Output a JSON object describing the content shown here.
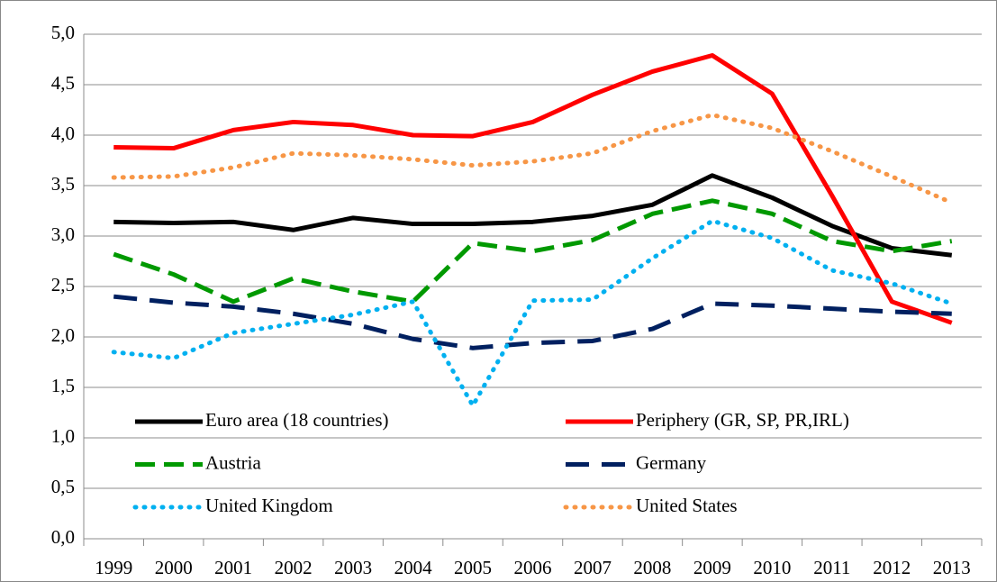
{
  "chart_data": {
    "type": "line",
    "categories": [
      "1999",
      "2000",
      "2001",
      "2002",
      "2003",
      "2004",
      "2005",
      "2006",
      "2007",
      "2008",
      "2009",
      "2010",
      "2011",
      "2012",
      "2013"
    ],
    "series": [
      {
        "name": "Euro area (18 countries)",
        "color": "#000000",
        "dash": "solid",
        "values": [
          3.14,
          3.13,
          3.14,
          3.06,
          3.18,
          3.12,
          3.12,
          3.14,
          3.2,
          3.31,
          3.6,
          3.38,
          3.1,
          2.88,
          2.81
        ]
      },
      {
        "name": "Periphery (GR, SP, PR,IRL)",
        "color": "#ff0000",
        "dash": "solid",
        "values": [
          3.88,
          3.87,
          4.05,
          4.13,
          4.1,
          4.0,
          3.99,
          4.13,
          4.4,
          4.63,
          4.79,
          4.41,
          3.4,
          2.35,
          2.14
        ]
      },
      {
        "name": "Austria",
        "color": "#009900",
        "dash": "dashed",
        "values": [
          2.82,
          2.62,
          2.35,
          2.58,
          2.45,
          2.35,
          2.93,
          2.85,
          2.96,
          3.22,
          3.35,
          3.22,
          2.95,
          2.85,
          2.95
        ]
      },
      {
        "name": "Germany",
        "color": "#002060",
        "dash": "longdash",
        "values": [
          2.4,
          2.34,
          2.3,
          2.23,
          2.13,
          1.98,
          1.89,
          1.94,
          1.96,
          2.08,
          2.33,
          2.31,
          2.28,
          2.25,
          2.23
        ]
      },
      {
        "name": "United Kingdom",
        "color": "#00b0f0",
        "dash": "dotted",
        "values": [
          1.85,
          1.79,
          2.04,
          2.13,
          2.22,
          2.35,
          1.32,
          2.36,
          2.37,
          2.78,
          3.15,
          2.98,
          2.66,
          2.53,
          2.33
        ]
      },
      {
        "name": "United States",
        "color": "#f79646",
        "dash": "dotted",
        "values": [
          3.58,
          3.59,
          3.68,
          3.82,
          3.8,
          3.76,
          3.7,
          3.74,
          3.82,
          4.04,
          4.2,
          4.07,
          3.84,
          3.59,
          3.33
        ]
      }
    ],
    "ylim": [
      0,
      5
    ],
    "yticks": [
      {
        "value": 0,
        "label": "0,0"
      },
      {
        "value": 0.5,
        "label": "0,5"
      },
      {
        "value": 1,
        "label": "1,0"
      },
      {
        "value": 1.5,
        "label": "1,5"
      },
      {
        "value": 2,
        "label": "2,0"
      },
      {
        "value": 2.5,
        "label": "2,5"
      },
      {
        "value": 3,
        "label": "3,0"
      },
      {
        "value": 3.5,
        "label": "3,5"
      },
      {
        "value": 4,
        "label": "4,0"
      },
      {
        "value": 4.5,
        "label": "4,5"
      },
      {
        "value": 5,
        "label": "5,0"
      }
    ],
    "grid": true,
    "legend": "lower"
  }
}
